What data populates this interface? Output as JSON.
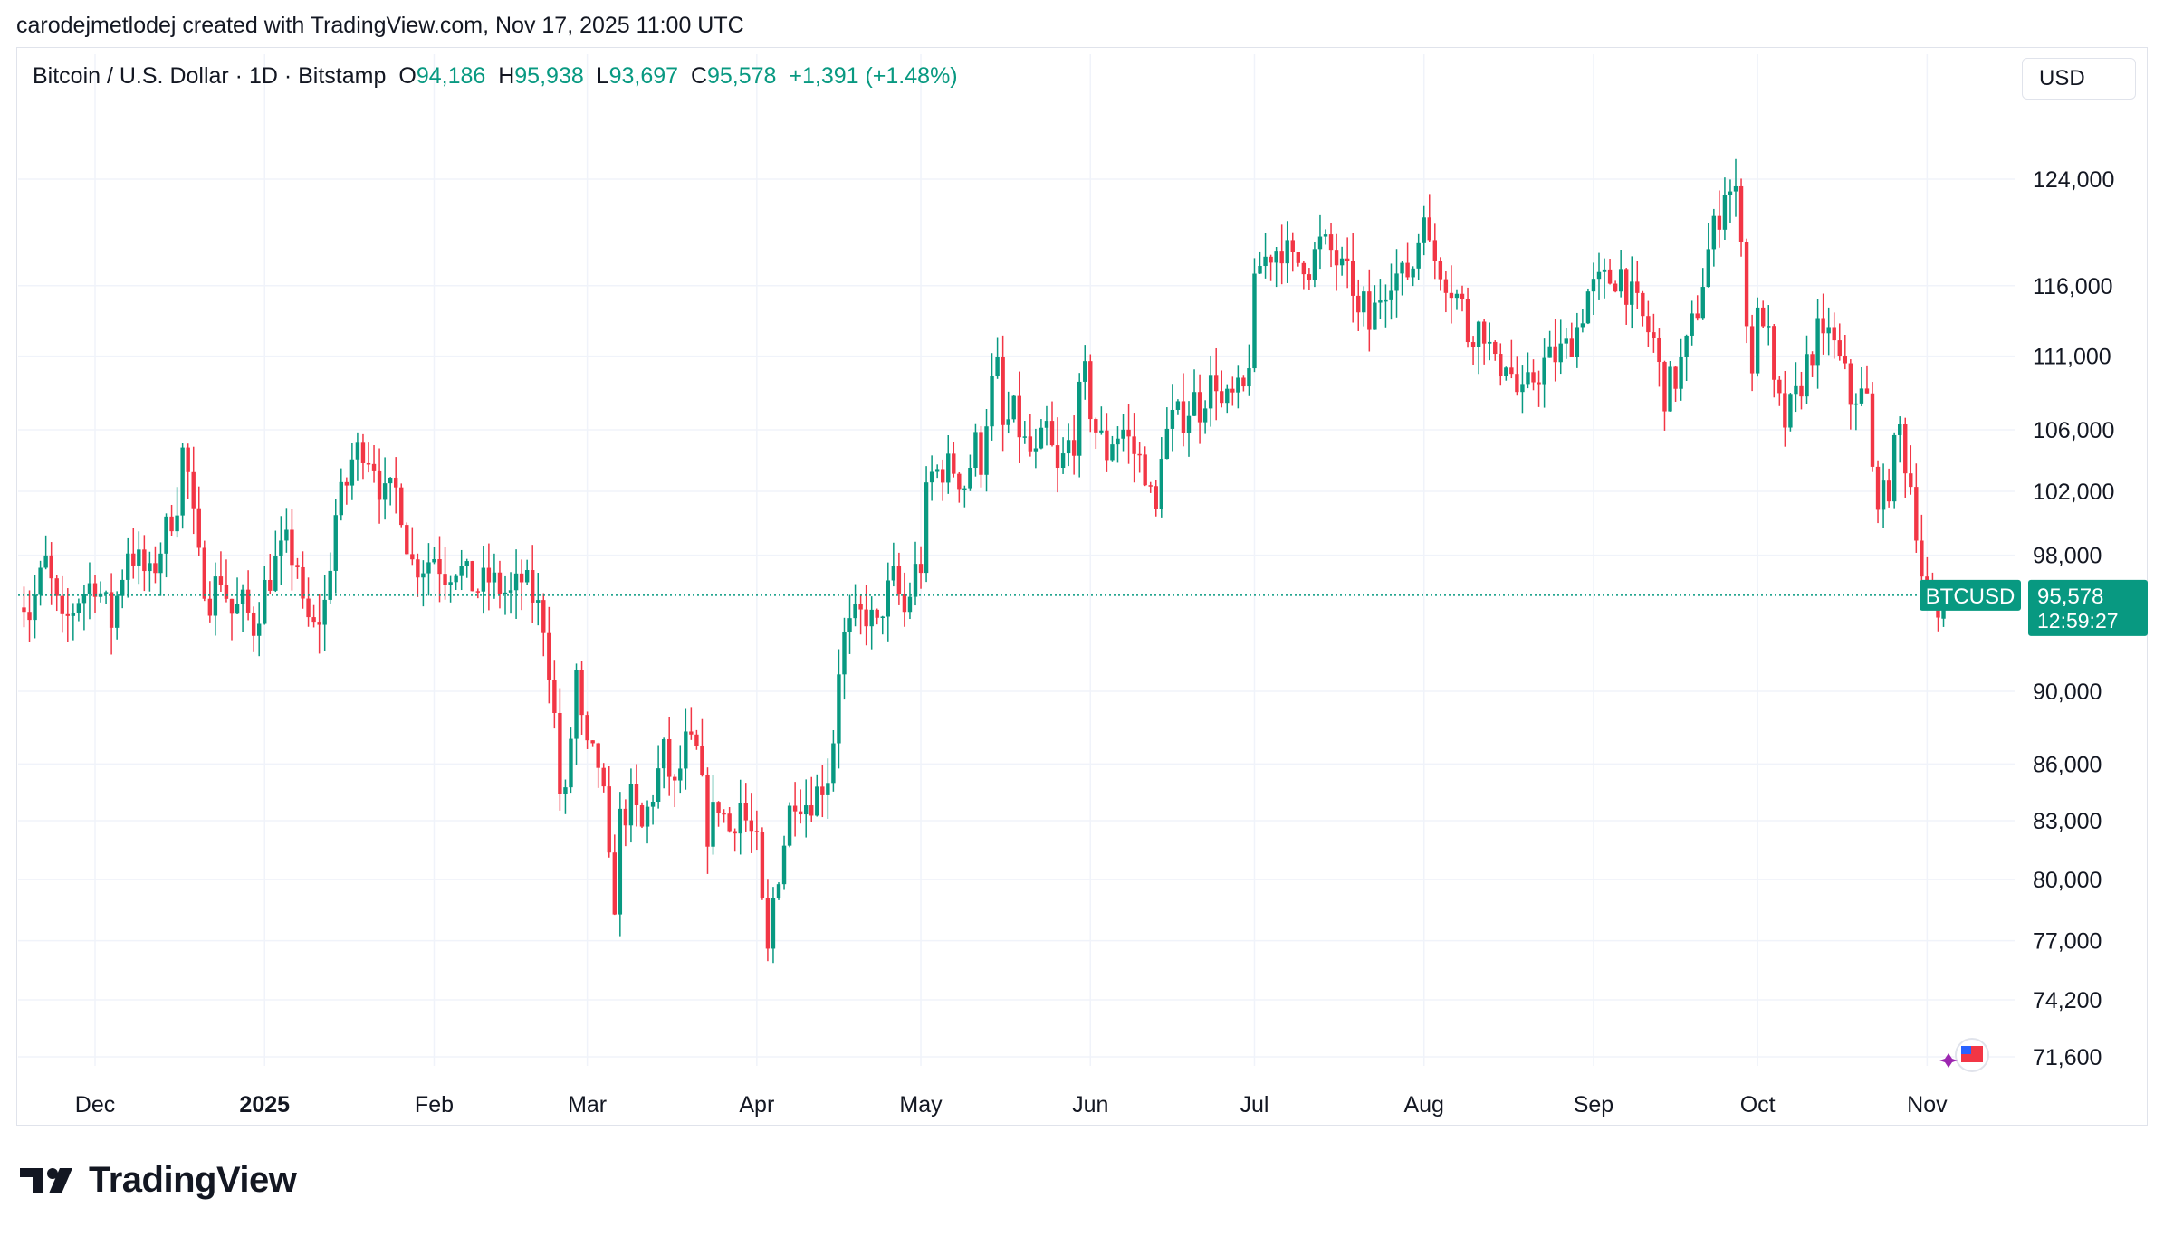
{
  "header": {
    "attribution": "carodejmetlodej created with TradingView.com, Nov 17, 2025 11:00 UTC"
  },
  "legend": {
    "symbol_desc": "Bitcoin / U.S. Dollar · 1D · Bitstamp",
    "o_label": "O",
    "o_value": "94,186",
    "h_label": "H",
    "h_value": "95,938",
    "l_label": "L",
    "l_value": "93,697",
    "c_label": "C",
    "c_value": "95,578",
    "change": "+1,391 (+1.48%)"
  },
  "currency_button": "USD",
  "price_tag": {
    "symbol": "BTCUSD",
    "price": "95,578",
    "countdown": "12:59:27"
  },
  "footer": {
    "brand": "TradingView"
  },
  "colors": {
    "up": "#089981",
    "down": "#f23645",
    "grid": "#f0f3fa",
    "text": "#131722"
  },
  "chart_data": {
    "type": "candlestick",
    "y_scale": "log",
    "y_ticks": [
      "124,000",
      "116,000",
      "111,000",
      "106,000",
      "102,000",
      "98,000",
      "90,000",
      "86,000",
      "83,000",
      "80,000",
      "77,000",
      "74,200",
      "71,600"
    ],
    "y_tick_values": [
      124000,
      116000,
      111000,
      106000,
      102000,
      98000,
      90000,
      86000,
      83000,
      80000,
      77000,
      74200,
      71600
    ],
    "x_ticks": [
      "Dec",
      "2025",
      "Feb",
      "Mar",
      "Apr",
      "May",
      "Jun",
      "Jul",
      "Aug",
      "Sep",
      "Oct",
      "Nov"
    ],
    "x_tick_days": [
      0,
      31,
      62,
      90,
      121,
      151,
      182,
      212,
      243,
      274,
      304,
      335
    ],
    "last_price": 95578,
    "anchors": [
      [
        -14,
        96000
      ],
      [
        -12,
        94500
      ],
      [
        -9,
        97500
      ],
      [
        -6,
        93500
      ],
      [
        -3,
        95500
      ],
      [
        0,
        96500
      ],
      [
        3,
        94000
      ],
      [
        6,
        98500
      ],
      [
        10,
        96500
      ],
      [
        13,
        99500
      ],
      [
        15,
        101500
      ],
      [
        16,
        104500
      ],
      [
        17,
        103000
      ],
      [
        18,
        100000
      ],
      [
        19,
        97500
      ],
      [
        21,
        95500
      ],
      [
        23,
        96800
      ],
      [
        25,
        94500
      ],
      [
        27,
        95000
      ],
      [
        29,
        93800
      ],
      [
        31,
        96000
      ],
      [
        33,
        97500
      ],
      [
        35,
        98500
      ],
      [
        37,
        97500
      ],
      [
        38,
        94500
      ],
      [
        40,
        93500
      ],
      [
        42,
        95000
      ],
      [
        44,
        100500
      ],
      [
        45,
        101500
      ],
      [
        46,
        102500
      ],
      [
        47,
        104000
      ],
      [
        49,
        105000
      ],
      [
        50,
        104500
      ],
      [
        51,
        104000
      ],
      [
        52,
        102500
      ],
      [
        53,
        101500
      ],
      [
        55,
        102000
      ],
      [
        56,
        101000
      ],
      [
        57,
        99000
      ],
      [
        58,
        97500
      ],
      [
        60,
        97500
      ],
      [
        62,
        98000
      ],
      [
        64,
        97000
      ],
      [
        66,
        97500
      ],
      [
        68,
        96500
      ],
      [
        70,
        96000
      ],
      [
        72,
        96500
      ],
      [
        74,
        96000
      ],
      [
        76,
        95500
      ],
      [
        78,
        96500
      ],
      [
        80,
        95500
      ],
      [
        82,
        94000
      ],
      [
        83,
        91500
      ],
      [
        84,
        88500
      ],
      [
        85,
        84500
      ],
      [
        86,
        84000
      ],
      [
        88,
        91000
      ],
      [
        89,
        88000
      ],
      [
        90,
        86500
      ],
      [
        92,
        86000
      ],
      [
        93,
        84000
      ],
      [
        94,
        80500
      ],
      [
        95,
        79000
      ],
      [
        96,
        83000
      ],
      [
        98,
        84000
      ],
      [
        100,
        82500
      ],
      [
        102,
        84500
      ],
      [
        104,
        86500
      ],
      [
        106,
        84500
      ],
      [
        108,
        87000
      ],
      [
        110,
        86500
      ],
      [
        111,
        84500
      ],
      [
        112,
        82500
      ],
      [
        114,
        84000
      ],
      [
        116,
        82500
      ],
      [
        118,
        84000
      ],
      [
        119,
        83000
      ],
      [
        121,
        81500
      ],
      [
        122,
        78500
      ],
      [
        123,
        76200
      ],
      [
        124,
        79000
      ],
      [
        126,
        82000
      ],
      [
        127,
        83500
      ],
      [
        128,
        84500
      ],
      [
        130,
        84000
      ],
      [
        132,
        84500
      ],
      [
        134,
        85500
      ],
      [
        135,
        87500
      ],
      [
        136,
        91500
      ],
      [
        137,
        93000
      ],
      [
        139,
        94000
      ],
      [
        141,
        94500
      ],
      [
        143,
        93500
      ],
      [
        144,
        95000
      ],
      [
        146,
        96500
      ],
      [
        148,
        94500
      ],
      [
        150,
        97000
      ],
      [
        151,
        97500
      ],
      [
        152,
        101500
      ],
      [
        153,
        103000
      ],
      [
        155,
        103500
      ],
      [
        157,
        103500
      ],
      [
        159,
        102500
      ],
      [
        161,
        105000
      ],
      [
        162,
        104000
      ],
      [
        163,
        107000
      ],
      [
        164,
        109000
      ],
      [
        165,
        110000
      ],
      [
        166,
        106000
      ],
      [
        168,
        107000
      ],
      [
        170,
        105000
      ],
      [
        172,
        104000
      ],
      [
        174,
        106000
      ],
      [
        176,
        103000
      ],
      [
        178,
        105000
      ],
      [
        179,
        105500
      ],
      [
        180,
        108000
      ],
      [
        181,
        109500
      ],
      [
        182,
        107500
      ],
      [
        183,
        106000
      ],
      [
        185,
        104500
      ],
      [
        186,
        105500
      ],
      [
        188,
        106000
      ],
      [
        190,
        104500
      ],
      [
        192,
        103500
      ],
      [
        193,
        101500
      ],
      [
        194,
        100500
      ],
      [
        195,
        105000
      ],
      [
        197,
        106500
      ],
      [
        199,
        107000
      ],
      [
        201,
        108000
      ],
      [
        202,
        107500
      ],
      [
        203,
        108500
      ],
      [
        205,
        109500
      ],
      [
        206,
        107500
      ],
      [
        208,
        108000
      ],
      [
        210,
        108500
      ],
      [
        211,
        111000
      ],
      [
        212,
        115500
      ],
      [
        213,
        117500
      ],
      [
        215,
        118500
      ],
      [
        217,
        119000
      ],
      [
        219,
        117500
      ],
      [
        221,
        118000
      ],
      [
        222,
        117500
      ],
      [
        224,
        119000
      ],
      [
        226,
        118500
      ],
      [
        228,
        117000
      ],
      [
        230,
        116000
      ],
      [
        231,
        113500
      ],
      [
        232,
        114500
      ],
      [
        233,
        113000
      ],
      [
        235,
        115500
      ],
      [
        237,
        117000
      ],
      [
        239,
        116500
      ],
      [
        241,
        117500
      ],
      [
        242,
        119500
      ],
      [
        243,
        122500
      ],
      [
        244,
        118500
      ],
      [
        246,
        117500
      ],
      [
        248,
        116000
      ],
      [
        250,
        114500
      ],
      [
        251,
        112500
      ],
      [
        252,
        113000
      ],
      [
        254,
        113000
      ],
      [
        256,
        110000
      ],
      [
        258,
        111000
      ],
      [
        260,
        108500
      ],
      [
        261,
        108000
      ],
      [
        263,
        109500
      ],
      [
        265,
        110500
      ],
      [
        267,
        111000
      ],
      [
        269,
        111500
      ],
      [
        271,
        113000
      ],
      [
        273,
        115500
      ],
      [
        275,
        116000
      ],
      [
        277,
        116500
      ],
      [
        279,
        117000
      ],
      [
        281,
        115000
      ],
      [
        283,
        113500
      ],
      [
        285,
        112000
      ],
      [
        286,
        110000
      ],
      [
        287,
        108500
      ],
      [
        289,
        109500
      ],
      [
        291,
        111500
      ],
      [
        293,
        114500
      ],
      [
        295,
        118500
      ],
      [
        297,
        121500
      ],
      [
        298,
        123500
      ],
      [
        300,
        122500
      ],
      [
        301,
        120500
      ],
      [
        302,
        113000
      ],
      [
        303,
        110500
      ],
      [
        304,
        113500
      ],
      [
        305,
        114000
      ],
      [
        306,
        112000
      ],
      [
        307,
        108500
      ],
      [
        309,
        106500
      ],
      [
        311,
        108000
      ],
      [
        313,
        110500
      ],
      [
        315,
        112500
      ],
      [
        316,
        111500
      ],
      [
        317,
        113500
      ],
      [
        318,
        111500
      ],
      [
        319,
        110500
      ],
      [
        320,
        109500
      ],
      [
        321,
        108000
      ],
      [
        322,
        108500
      ],
      [
        324,
        108000
      ],
      [
        325,
        103000
      ],
      [
        326,
        102000
      ],
      [
        327,
        101500
      ],
      [
        328,
        102500
      ],
      [
        329,
        104500
      ],
      [
        330,
        106000
      ],
      [
        331,
        104000
      ],
      [
        332,
        102500
      ],
      [
        333,
        100000
      ],
      [
        334,
        97000
      ],
      [
        335,
        95200
      ],
      [
        336,
        94300
      ],
      [
        337,
        94200
      ],
      [
        338,
        95578
      ]
    ]
  }
}
